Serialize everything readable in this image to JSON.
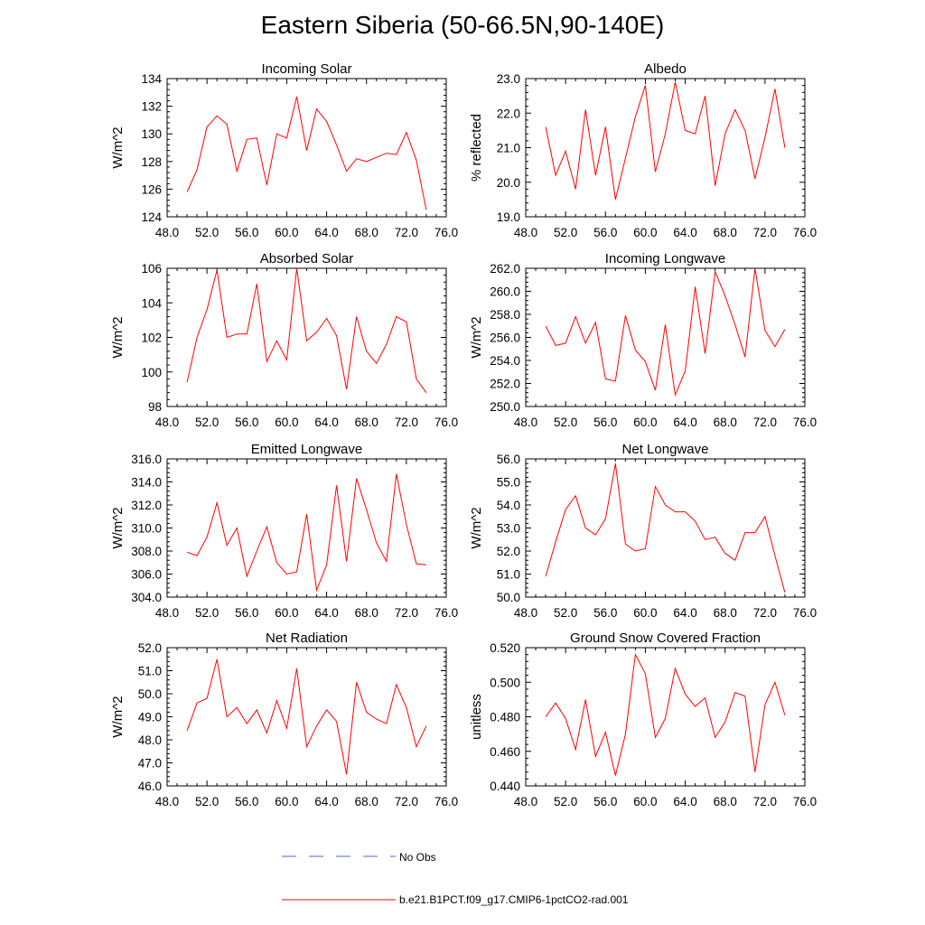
{
  "title": "Eastern Siberia (50-66.5N,90-140E)",
  "line_color": "#ff0000",
  "obs_color": "#5566bb",
  "legend": {
    "obs_label": "No Obs",
    "model_label": "b.e21.B1PCT.f09_g17.CMIP6-1pctCO2-rad.001"
  },
  "chart_data": [
    {
      "type": "line",
      "title": "Incoming Solar",
      "ylabel": "W/m^2",
      "xlim": [
        48,
        76
      ],
      "ylim": [
        124,
        134
      ],
      "xticks": [
        "48.0",
        "52.0",
        "56.0",
        "60.0",
        "64.0",
        "68.0",
        "72.0",
        "76.0"
      ],
      "yticks": [
        "124",
        "126",
        "128",
        "130",
        "132",
        "134"
      ],
      "x": [
        50,
        51,
        52,
        53,
        54,
        55,
        56,
        57,
        58,
        59,
        60,
        61,
        62,
        63,
        64,
        65,
        66,
        67,
        68,
        69,
        70,
        71,
        72,
        73,
        74
      ],
      "values": [
        125.8,
        127.4,
        130.5,
        131.3,
        130.7,
        127.3,
        129.6,
        129.7,
        126.3,
        130.0,
        129.7,
        132.7,
        128.8,
        131.8,
        130.9,
        129.2,
        127.3,
        128.2,
        128.0,
        128.3,
        128.6,
        128.5,
        130.1,
        128.1,
        124.5
      ]
    },
    {
      "type": "line",
      "title": "Albedo",
      "ylabel": "% reflected",
      "xlim": [
        48,
        76
      ],
      "ylim": [
        19,
        23
      ],
      "xticks": [
        "48.0",
        "52.0",
        "56.0",
        "60.0",
        "64.0",
        "68.0",
        "72.0",
        "76.0"
      ],
      "yticks": [
        "19.0",
        "20.0",
        "21.0",
        "22.0",
        "23.0"
      ],
      "x": [
        50,
        51,
        52,
        53,
        54,
        55,
        56,
        57,
        58,
        59,
        60,
        61,
        62,
        63,
        64,
        65,
        66,
        67,
        68,
        69,
        70,
        71,
        72,
        73,
        74
      ],
      "values": [
        21.6,
        20.2,
        20.9,
        19.8,
        22.1,
        20.2,
        21.6,
        19.5,
        20.7,
        21.9,
        22.8,
        20.3,
        21.4,
        22.9,
        21.5,
        21.4,
        22.5,
        19.9,
        21.4,
        22.1,
        21.5,
        20.1,
        21.3,
        22.7,
        21.0
      ]
    },
    {
      "type": "line",
      "title": "Absorbed Solar",
      "ylabel": "W/m^2",
      "xlim": [
        48,
        76
      ],
      "ylim": [
        98,
        106
      ],
      "xticks": [
        "48.0",
        "52.0",
        "56.0",
        "60.0",
        "64.0",
        "68.0",
        "72.0",
        "76.0"
      ],
      "yticks": [
        "98",
        "100",
        "102",
        "104",
        "106"
      ],
      "x": [
        50,
        51,
        52,
        53,
        54,
        55,
        56,
        57,
        58,
        59,
        60,
        61,
        62,
        63,
        64,
        65,
        66,
        67,
        68,
        69,
        70,
        71,
        72,
        73,
        74
      ],
      "values": [
        99.4,
        102.0,
        103.6,
        105.9,
        102.0,
        102.2,
        102.2,
        105.1,
        100.6,
        101.8,
        100.7,
        106.0,
        101.8,
        102.3,
        103.1,
        102.1,
        99.0,
        103.2,
        101.2,
        100.5,
        101.6,
        103.2,
        102.9,
        99.6,
        98.8
      ]
    },
    {
      "type": "line",
      "title": "Incoming Longwave",
      "ylabel": "W/m^2",
      "xlim": [
        48,
        76
      ],
      "ylim": [
        250,
        262
      ],
      "xticks": [
        "48.0",
        "52.0",
        "56.0",
        "60.0",
        "64.0",
        "68.0",
        "72.0",
        "76.0"
      ],
      "yticks": [
        "250.0",
        "252.0",
        "254.0",
        "256.0",
        "258.0",
        "260.0",
        "262.0"
      ],
      "x": [
        50,
        51,
        52,
        53,
        54,
        55,
        56,
        57,
        58,
        59,
        60,
        61,
        62,
        63,
        64,
        65,
        66,
        67,
        68,
        69,
        70,
        71,
        72,
        73,
        74
      ],
      "values": [
        257.0,
        255.3,
        255.5,
        257.8,
        255.5,
        257.3,
        252.4,
        252.2,
        257.9,
        254.9,
        253.9,
        251.4,
        257.1,
        251.0,
        253.1,
        260.4,
        254.6,
        261.7,
        259.6,
        257.1,
        254.3,
        262.0,
        256.6,
        255.2,
        256.7
      ]
    },
    {
      "type": "line",
      "title": "Emitted Longwave",
      "ylabel": "W/m^2",
      "xlim": [
        48,
        76
      ],
      "ylim": [
        304,
        316
      ],
      "xticks": [
        "48.0",
        "52.0",
        "56.0",
        "60.0",
        "64.0",
        "68.0",
        "72.0",
        "76.0"
      ],
      "yticks": [
        "304.0",
        "306.0",
        "308.0",
        "310.0",
        "312.0",
        "314.0",
        "316.0"
      ],
      "x": [
        50,
        51,
        52,
        53,
        54,
        55,
        56,
        57,
        58,
        59,
        60,
        61,
        62,
        63,
        64,
        65,
        66,
        67,
        68,
        69,
        70,
        71,
        72,
        73,
        74
      ],
      "values": [
        307.9,
        307.6,
        309.2,
        312.2,
        308.5,
        310.0,
        305.8,
        308.0,
        310.1,
        307.0,
        306.0,
        306.2,
        311.2,
        304.6,
        306.8,
        313.7,
        307.1,
        314.3,
        311.6,
        308.7,
        307.1,
        314.7,
        310.3,
        306.9,
        306.8
      ]
    },
    {
      "type": "line",
      "title": "Net Longwave",
      "ylabel": "W/m^2",
      "xlim": [
        48,
        76
      ],
      "ylim": [
        50,
        56
      ],
      "xticks": [
        "48.0",
        "52.0",
        "56.0",
        "60.0",
        "64.0",
        "68.0",
        "72.0",
        "76.0"
      ],
      "yticks": [
        "50.0",
        "51.0",
        "52.0",
        "53.0",
        "54.0",
        "55.0",
        "56.0"
      ],
      "x": [
        50,
        51,
        52,
        53,
        54,
        55,
        56,
        57,
        58,
        59,
        60,
        61,
        62,
        63,
        64,
        65,
        66,
        67,
        68,
        69,
        70,
        71,
        72,
        73,
        74
      ],
      "values": [
        50.9,
        52.4,
        53.8,
        54.4,
        53.0,
        52.7,
        53.4,
        55.8,
        52.3,
        52.0,
        52.1,
        54.8,
        54.0,
        53.7,
        53.7,
        53.3,
        52.5,
        52.6,
        51.9,
        51.6,
        52.8,
        52.8,
        53.5,
        51.8,
        50.2
      ]
    },
    {
      "type": "line",
      "title": "Net Radiation",
      "ylabel": "W/m^2",
      "xlim": [
        48,
        76
      ],
      "ylim": [
        46,
        52
      ],
      "xticks": [
        "48.0",
        "52.0",
        "56.0",
        "60.0",
        "64.0",
        "68.0",
        "72.0",
        "76.0"
      ],
      "yticks": [
        "46.0",
        "47.0",
        "48.0",
        "49.0",
        "50.0",
        "51.0",
        "52.0"
      ],
      "x": [
        50,
        51,
        52,
        53,
        54,
        55,
        56,
        57,
        58,
        59,
        60,
        61,
        62,
        63,
        64,
        65,
        66,
        67,
        68,
        69,
        70,
        71,
        72,
        73,
        74
      ],
      "values": [
        48.4,
        49.6,
        49.8,
        51.5,
        49.0,
        49.4,
        48.7,
        49.3,
        48.3,
        49.7,
        48.5,
        51.1,
        47.7,
        48.6,
        49.3,
        48.8,
        46.5,
        50.5,
        49.2,
        48.9,
        48.7,
        50.4,
        49.4,
        47.7,
        48.6
      ]
    },
    {
      "type": "line",
      "title": "Ground Snow Covered Fraction",
      "ylabel": "unitless",
      "xlim": [
        48,
        76
      ],
      "ylim": [
        0.44,
        0.52
      ],
      "xticks": [
        "48.0",
        "52.0",
        "56.0",
        "60.0",
        "64.0",
        "68.0",
        "72.0",
        "76.0"
      ],
      "yticks": [
        "0.440",
        "0.460",
        "0.480",
        "0.500",
        "0.520"
      ],
      "x": [
        50,
        51,
        52,
        53,
        54,
        55,
        56,
        57,
        58,
        59,
        60,
        61,
        62,
        63,
        64,
        65,
        66,
        67,
        68,
        69,
        70,
        71,
        72,
        73,
        74
      ],
      "values": [
        0.48,
        0.488,
        0.479,
        0.461,
        0.49,
        0.457,
        0.471,
        0.446,
        0.47,
        0.516,
        0.505,
        0.468,
        0.479,
        0.508,
        0.493,
        0.486,
        0.491,
        0.468,
        0.477,
        0.494,
        0.492,
        0.448,
        0.487,
        0.5,
        0.481
      ]
    }
  ]
}
